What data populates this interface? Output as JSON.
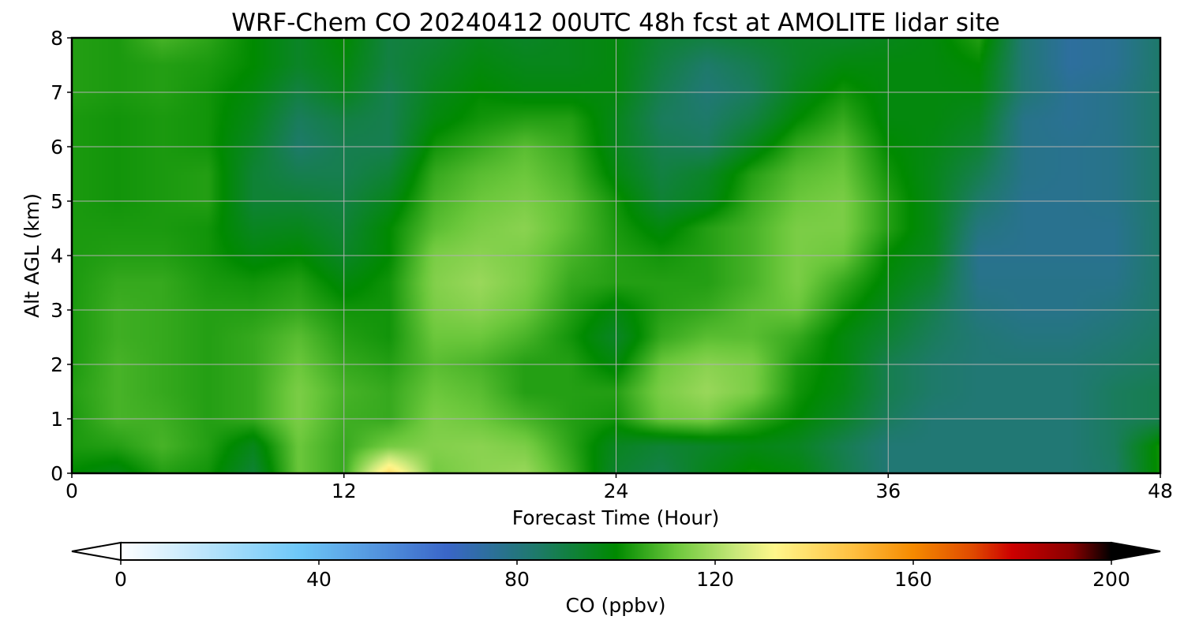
{
  "chart_data": {
    "type": "heatmap",
    "title": "WRF-Chem CO  20240412 00UTC 48h fcst at AMOLITE lidar site",
    "xlabel": "Forecast Time (Hour)",
    "ylabel": "Alt AGL (km)",
    "xlim": [
      0,
      48
    ],
    "ylim": [
      0,
      8
    ],
    "xticks": [
      0,
      12,
      24,
      36,
      48
    ],
    "yticks": [
      0,
      1,
      2,
      3,
      4,
      5,
      6,
      7,
      8
    ],
    "grid": true,
    "grid_color": "#b0b0b0",
    "x_hours": [
      0,
      2,
      4,
      6,
      8,
      10,
      12,
      14,
      16,
      18,
      20,
      22,
      24,
      26,
      28,
      30,
      32,
      34,
      36,
      38,
      40,
      42,
      44,
      46,
      48
    ],
    "z_km": [
      0,
      0.5,
      1,
      1.5,
      2,
      2.5,
      3,
      3.5,
      4,
      4.5,
      5,
      5.5,
      6,
      6.5,
      7,
      7.5,
      8
    ],
    "co_ppbv": [
      [
        100,
        97,
        104,
        102,
        92,
        112,
        106,
        140,
        113,
        116,
        118,
        107,
        93,
        89,
        96,
        101,
        98,
        89,
        82,
        82,
        82,
        82,
        82,
        85,
        102
      ],
      [
        103,
        104,
        108,
        104,
        96,
        112,
        106,
        113,
        115,
        116,
        114,
        105,
        95,
        92,
        94,
        97,
        95,
        88,
        82,
        82,
        82,
        82,
        82,
        86,
        102
      ],
      [
        103,
        108,
        107,
        104,
        106,
        114,
        107,
        106,
        114,
        112,
        108,
        104,
        102,
        112,
        114,
        106,
        100,
        94,
        86,
        82,
        82,
        82,
        82,
        86,
        88
      ],
      [
        104,
        108,
        106,
        104,
        106,
        114,
        108,
        106,
        112,
        110,
        104,
        104,
        104,
        114,
        118,
        114,
        102,
        97,
        88,
        84,
        82,
        82,
        82,
        86,
        88
      ],
      [
        103,
        108,
        106,
        104,
        106,
        112,
        106,
        104,
        110,
        108,
        104,
        104,
        98,
        112,
        116,
        114,
        103,
        98,
        88,
        84,
        82,
        82,
        82,
        84,
        86
      ],
      [
        103,
        107,
        106,
        104,
        106,
        110,
        104,
        102,
        112,
        112,
        108,
        102,
        94,
        106,
        110,
        110,
        106,
        98,
        92,
        86,
        82,
        80,
        80,
        82,
        85
      ],
      [
        103,
        107,
        106,
        104,
        104,
        106,
        102,
        102,
        114,
        116,
        112,
        104,
        98,
        104,
        106,
        110,
        112,
        102,
        95,
        88,
        80,
        78,
        78,
        80,
        84
      ],
      [
        103,
        106,
        106,
        103,
        102,
        104,
        98,
        102,
        115,
        118,
        114,
        106,
        104,
        104,
        104,
        108,
        114,
        106,
        98,
        92,
        78,
        78,
        78,
        78,
        84
      ],
      [
        103,
        104,
        104,
        102,
        98,
        100,
        94,
        100,
        114,
        116,
        114,
        108,
        104,
        102,
        104,
        108,
        114,
        112,
        100,
        95,
        77,
        77,
        77,
        77,
        84
      ],
      [
        103,
        103,
        103,
        102,
        95,
        96,
        92,
        100,
        110,
        114,
        116,
        110,
        103,
        98,
        104,
        108,
        114,
        114,
        104,
        96,
        80,
        77,
        77,
        77,
        84
      ],
      [
        103,
        102,
        103,
        104,
        92,
        92,
        90,
        96,
        108,
        112,
        114,
        110,
        102,
        92,
        96,
        106,
        112,
        114,
        104,
        96,
        84,
        77,
        77,
        78,
        84
      ],
      [
        103,
        102,
        103,
        104,
        92,
        88,
        88,
        92,
        106,
        110,
        112,
        108,
        98,
        90,
        94,
        104,
        110,
        112,
        102,
        96,
        88,
        78,
        77,
        78,
        84
      ],
      [
        103,
        102,
        103,
        102,
        94,
        84,
        88,
        88,
        102,
        106,
        110,
        106,
        96,
        88,
        86,
        96,
        106,
        110,
        100,
        97,
        92,
        78,
        77,
        78,
        84
      ],
      [
        103,
        102,
        103,
        102,
        96,
        86,
        90,
        88,
        98,
        102,
        104,
        104,
        96,
        86,
        84,
        90,
        100,
        106,
        98,
        98,
        95,
        78,
        76,
        78,
        84
      ],
      [
        104,
        103,
        104,
        102,
        98,
        90,
        96,
        88,
        96,
        100,
        98,
        98,
        98,
        88,
        82,
        86,
        96,
        102,
        98,
        98,
        98,
        82,
        76,
        78,
        84
      ],
      [
        104,
        103,
        104,
        103,
        100,
        94,
        98,
        90,
        94,
        98,
        96,
        96,
        98,
        90,
        84,
        88,
        94,
        98,
        98,
        98,
        100,
        82,
        74,
        76,
        84
      ],
      [
        104,
        103,
        108,
        105,
        100,
        94,
        100,
        90,
        92,
        96,
        94,
        96,
        98,
        92,
        90,
        92,
        94,
        94,
        96,
        98,
        104,
        82,
        74,
        76,
        84
      ]
    ],
    "colorbar": {
      "label": "CO  (ppbv)",
      "min": 0,
      "max": 200,
      "ticks": [
        0,
        40,
        80,
        120,
        160,
        200
      ],
      "extend": "both",
      "colors": [
        "#ffffff",
        "#6ec8f8",
        "#3a66c8",
        "#1e7a6a",
        "#008a00",
        "#6cc83c",
        "#c8e87a",
        "#fff78c",
        "#ffc040",
        "#f58a00",
        "#e04a00",
        "#cc0000",
        "#8a0000",
        "#000000"
      ],
      "color_stops": [
        0,
        0.18,
        0.33,
        0.42,
        0.5,
        0.56,
        0.62,
        0.66,
        0.74,
        0.8,
        0.86,
        0.9,
        0.96,
        1.0
      ]
    }
  }
}
